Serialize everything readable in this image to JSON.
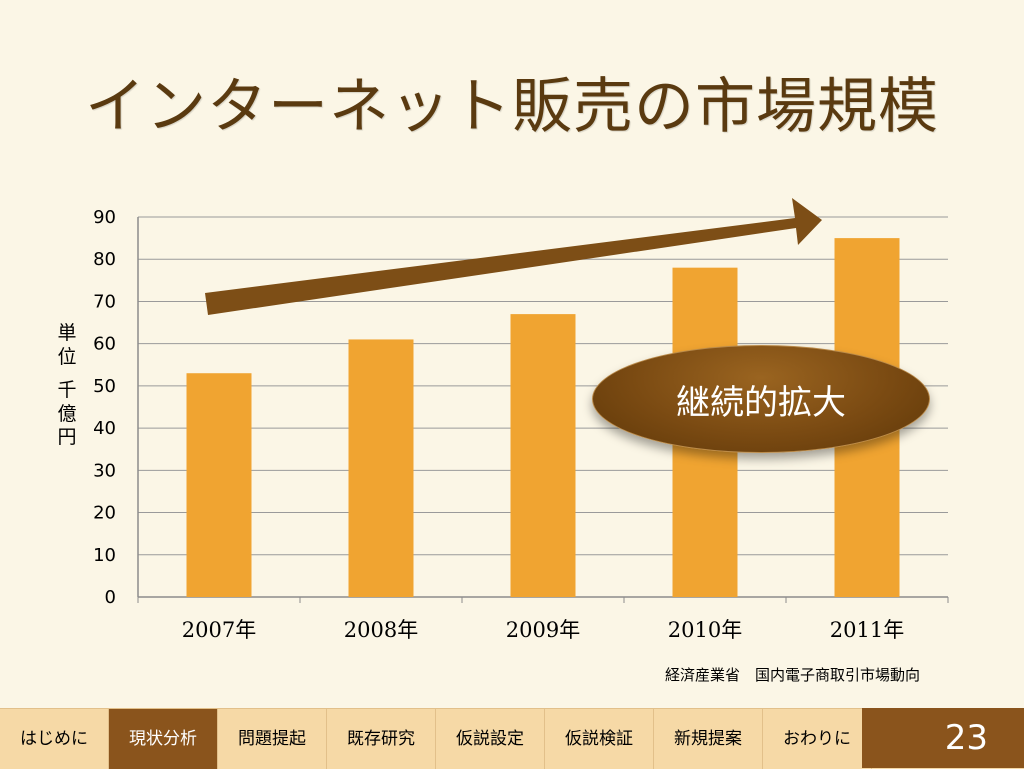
{
  "slide": {
    "title": "インターネット販売の市場規模",
    "badge": "継続的拡大",
    "source": "経済産業省　国内電子商取引市場動向",
    "page_number": "23",
    "ylabel_lines": [
      "単",
      "位",
      "千",
      "億",
      "円"
    ]
  },
  "nav": {
    "items": [
      "はじめに",
      "現状分析",
      "問題提起",
      "既存研究",
      "仮説設定",
      "仮説検証",
      "新規提案",
      "おわりに"
    ],
    "active_index": 1
  },
  "colors": {
    "bar": "#f0a431",
    "arrow": "#7d4e16",
    "accent_dark": "#8a541c",
    "nav_bg": "#f6d9a6",
    "background": "#fbf6e6"
  },
  "chart_data": {
    "type": "bar",
    "categories": [
      "2007年",
      "2008年",
      "2009年",
      "2010年",
      "2011年"
    ],
    "values": [
      53,
      61,
      67,
      78,
      85
    ],
    "ylim": [
      0,
      90
    ],
    "yticks": [
      0,
      10,
      20,
      30,
      40,
      50,
      60,
      70,
      80,
      90
    ],
    "ylabel": "単位 千億円",
    "grid": true,
    "legend": "none"
  }
}
